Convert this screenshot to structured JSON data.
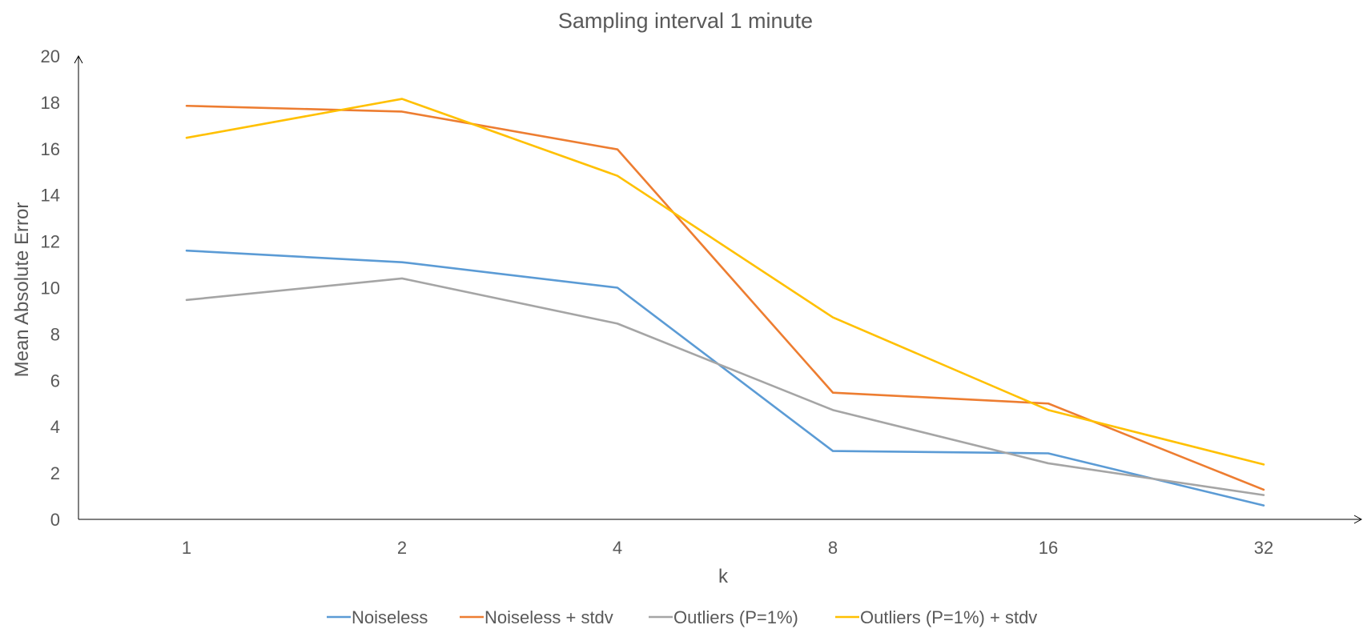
{
  "chart_data": {
    "type": "line",
    "title": "Sampling interval 1 minute",
    "xlabel": "k",
    "ylabel": "Mean Absolute Error",
    "categories": [
      "1",
      "2",
      "4",
      "8",
      "16",
      "32"
    ],
    "ylim": [
      0,
      20
    ],
    "yticks": [
      "0",
      "2",
      "4",
      "6",
      "8",
      "10",
      "12",
      "14",
      "16",
      "18",
      "20"
    ],
    "grid": false,
    "legend_position": "bottom",
    "series": [
      {
        "name": "Noiseless",
        "color": "#5b9bd5",
        "values": [
          11.6,
          11.1,
          10.0,
          2.95,
          2.85,
          0.6
        ]
      },
      {
        "name": "Noiseless + stdv",
        "color": "#ed7d31",
        "values": [
          17.85,
          17.6,
          15.97,
          5.47,
          5.0,
          1.28
        ]
      },
      {
        "name": "Outliers (P=1%)",
        "color": "#a5a5a5",
        "values": [
          9.47,
          10.4,
          8.45,
          4.72,
          2.42,
          1.05
        ]
      },
      {
        "name": "Outliers (P=1%) + stdv",
        "color": "#ffc000",
        "values": [
          16.47,
          18.15,
          14.83,
          8.72,
          4.72,
          2.37
        ]
      }
    ]
  }
}
